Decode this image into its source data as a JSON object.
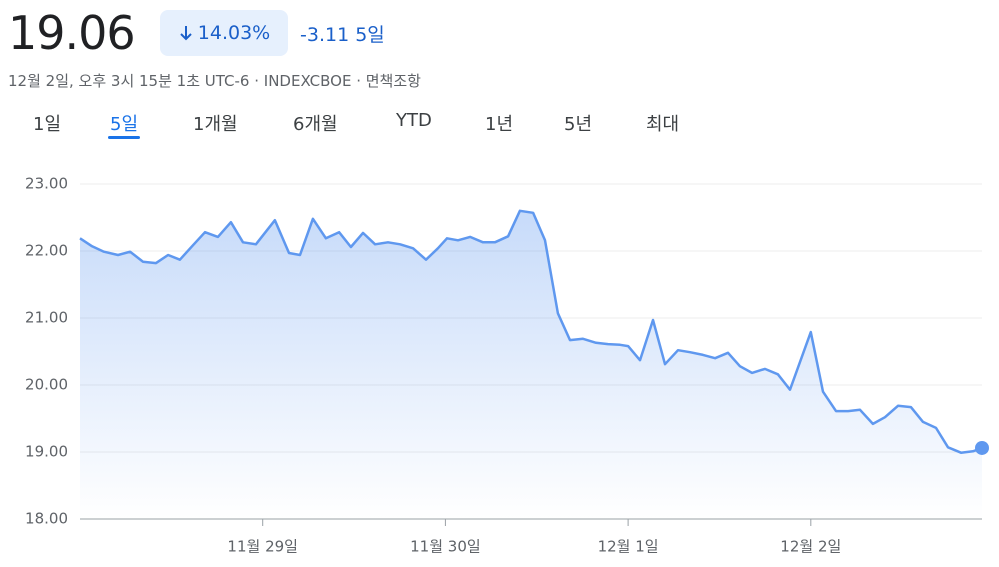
{
  "header": {
    "price": "19.06",
    "change_percent": "14.03%",
    "change": "-3.11",
    "period": "5일",
    "subtitle": "12월 2일, 오후 3시 15분 1초 UTC-6 · INDEXCBOE · 면책조항"
  },
  "tabs": {
    "items": [
      "1일",
      "5일",
      "1개월",
      "6개월",
      "YTD",
      "1년",
      "5년",
      "최대"
    ],
    "selected": 1
  },
  "chart_data": {
    "type": "line",
    "color": "#5f98ef",
    "grid": true,
    "x": [
      0,
      0.066,
      0.131,
      0.208,
      0.274,
      0.345,
      0.416,
      0.482,
      0.547,
      0.613,
      0.684,
      0.755,
      0.826,
      0.892,
      0.963,
      1.067,
      1.144,
      1.204,
      1.275,
      1.346,
      1.418,
      1.483,
      1.549,
      1.615,
      1.686,
      1.752,
      1.823,
      1.894,
      1.959,
      2.009,
      2.069,
      2.135,
      2.206,
      2.271,
      2.343,
      2.408,
      2.48,
      2.545,
      2.616,
      2.682,
      2.753,
      2.824,
      2.89,
      2.956,
      3.0,
      3.065,
      3.136,
      3.202,
      3.273,
      3.339,
      3.41,
      3.476,
      3.547,
      3.612,
      3.678,
      3.749,
      3.82,
      3.886,
      4.0,
      4.067,
      4.138,
      4.204,
      4.269,
      4.34,
      4.406,
      4.477,
      4.548,
      4.614,
      4.685,
      4.751,
      4.822,
      4.888,
      4.937
    ],
    "values": [
      22.19,
      22.07,
      21.99,
      21.94,
      21.99,
      21.84,
      21.82,
      21.94,
      21.87,
      22.07,
      22.28,
      22.21,
      22.43,
      22.13,
      22.1,
      22.46,
      21.97,
      21.94,
      22.48,
      22.19,
      22.28,
      22.06,
      22.27,
      22.1,
      22.13,
      22.1,
      22.04,
      21.87,
      22.04,
      22.19,
      22.16,
      22.21,
      22.13,
      22.13,
      22.22,
      22.6,
      22.57,
      22.16,
      21.07,
      20.67,
      20.69,
      20.63,
      20.61,
      20.6,
      20.58,
      20.37,
      20.97,
      20.31,
      20.52,
      20.49,
      20.45,
      20.4,
      20.48,
      20.28,
      20.18,
      20.24,
      20.16,
      19.93,
      20.79,
      19.9,
      19.61,
      19.61,
      19.63,
      19.42,
      19.52,
      19.69,
      19.67,
      19.45,
      19.36,
      19.07,
      18.99,
      19.01,
      19.06
    ],
    "xlim": [
      0,
      4.937
    ],
    "xticks": [
      {
        "value": 1,
        "label": "11월 29일"
      },
      {
        "value": 2,
        "label": "11월 30일"
      },
      {
        "value": 3,
        "label": "12월 1일"
      },
      {
        "value": 4,
        "label": "12월 2일"
      }
    ],
    "ylim": [
      18,
      23
    ],
    "yticks": [
      {
        "value": 18,
        "label": "18.00"
      },
      {
        "value": 19,
        "label": "19.00"
      },
      {
        "value": 20,
        "label": "20.00"
      },
      {
        "value": 21,
        "label": "21.00"
      },
      {
        "value": 22,
        "label": "22.00"
      },
      {
        "value": 23,
        "label": "23.00"
      }
    ]
  }
}
